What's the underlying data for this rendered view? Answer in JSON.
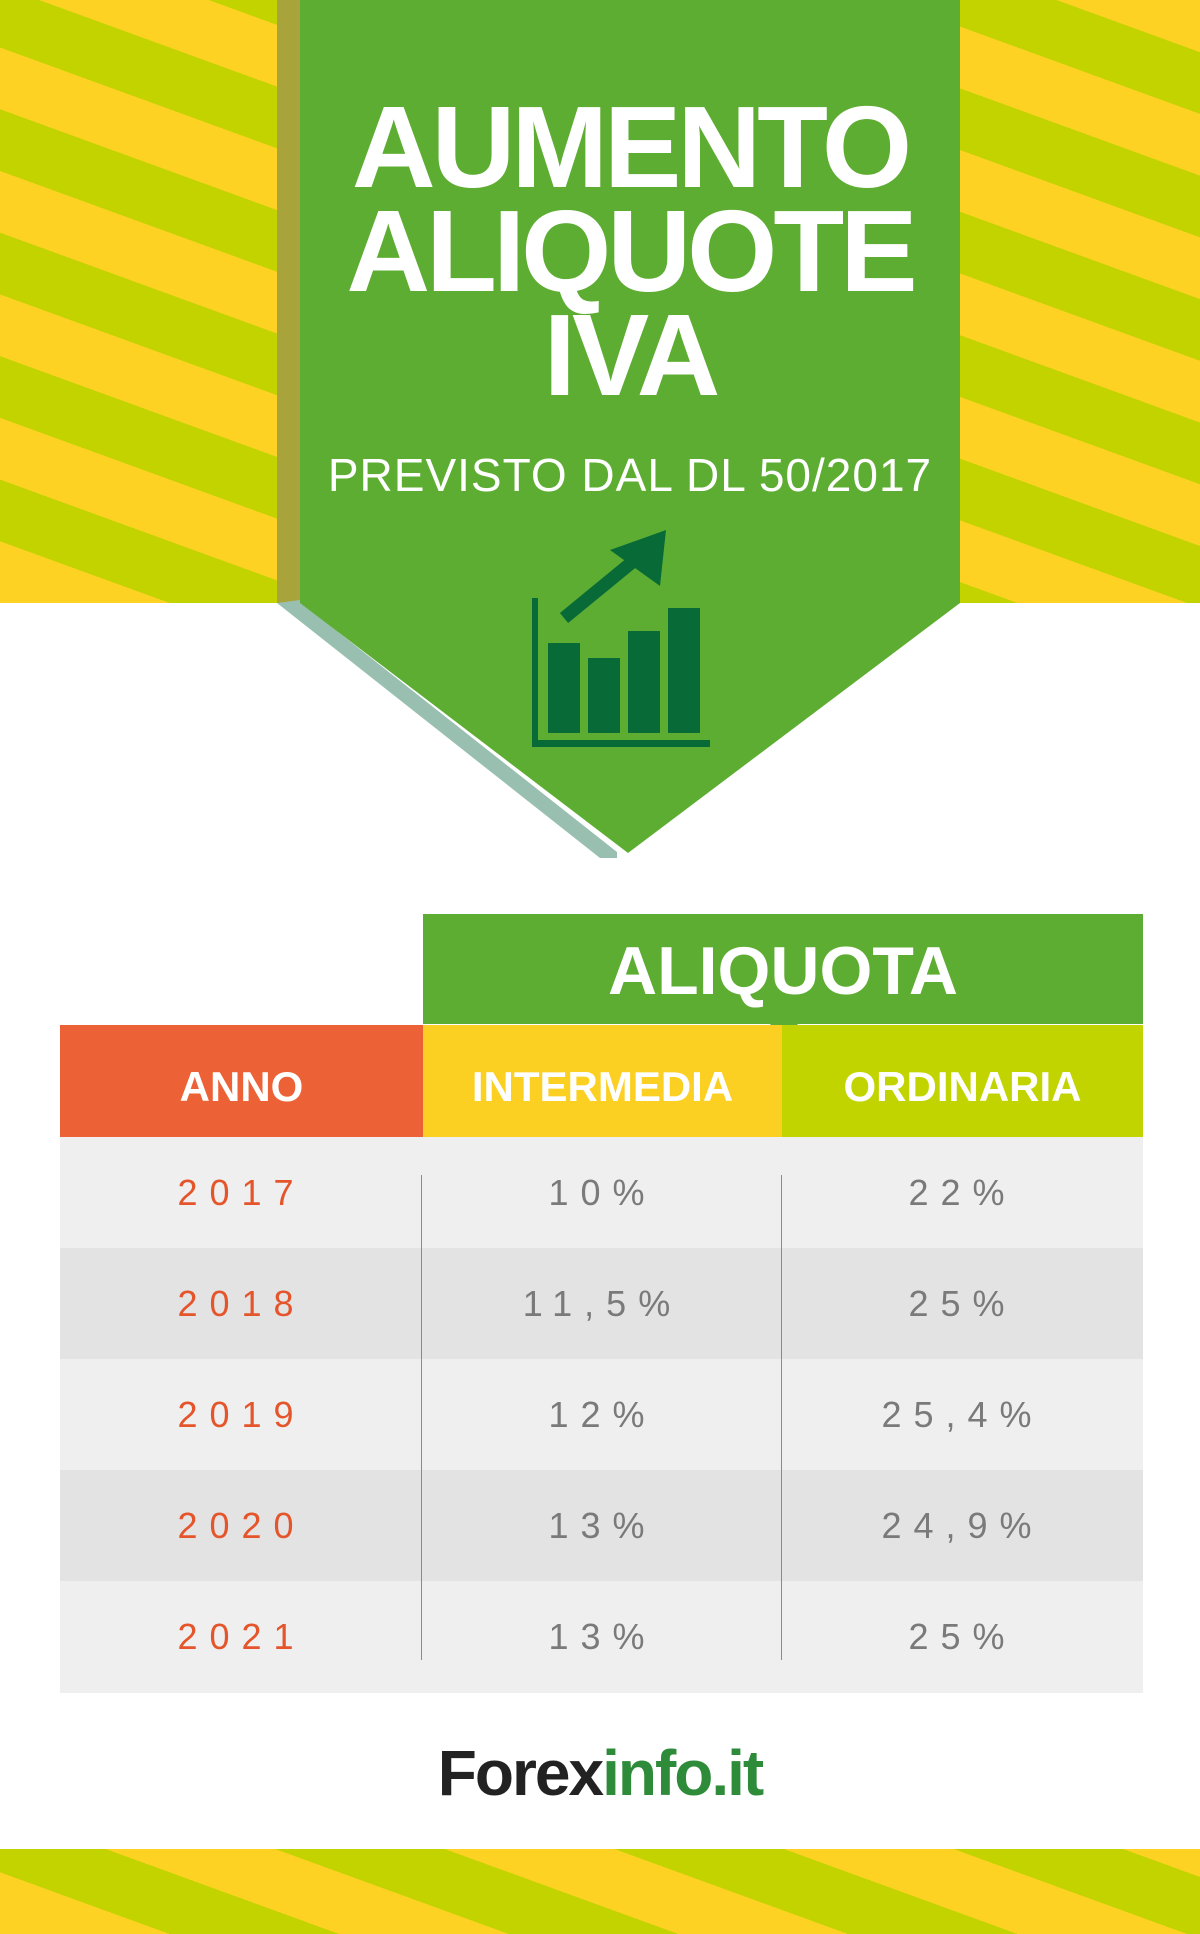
{
  "header": {
    "title_lines": [
      "AUMENTO",
      "ALIQUOTE",
      "IVA"
    ],
    "subtitle": "PREVISTO DAL DL 50/2017",
    "icon": "bar-chart-growth-icon"
  },
  "table": {
    "group_header": "ALIQUOTA",
    "columns": [
      "ANNO",
      "INTERMEDIA",
      "ORDINARIA"
    ],
    "rows": [
      {
        "anno": "2017",
        "intermedia": "10%",
        "ordinaria": "22%"
      },
      {
        "anno": "2018",
        "intermedia": "11,5%",
        "ordinaria": "25%"
      },
      {
        "anno": "2019",
        "intermedia": "12%",
        "ordinaria": "25,4%"
      },
      {
        "anno": "2020",
        "intermedia": "13%",
        "ordinaria": "24,9%"
      },
      {
        "anno": "2021",
        "intermedia": "13%",
        "ordinaria": "25%"
      }
    ]
  },
  "footer": {
    "logo_part1": "Forex",
    "logo_part2": "info.it"
  },
  "colors": {
    "green": "#5ead33",
    "dark_green": "#086b37",
    "orange": "#ec6236",
    "yellow": "#fcd022",
    "lime": "#c2d400"
  }
}
